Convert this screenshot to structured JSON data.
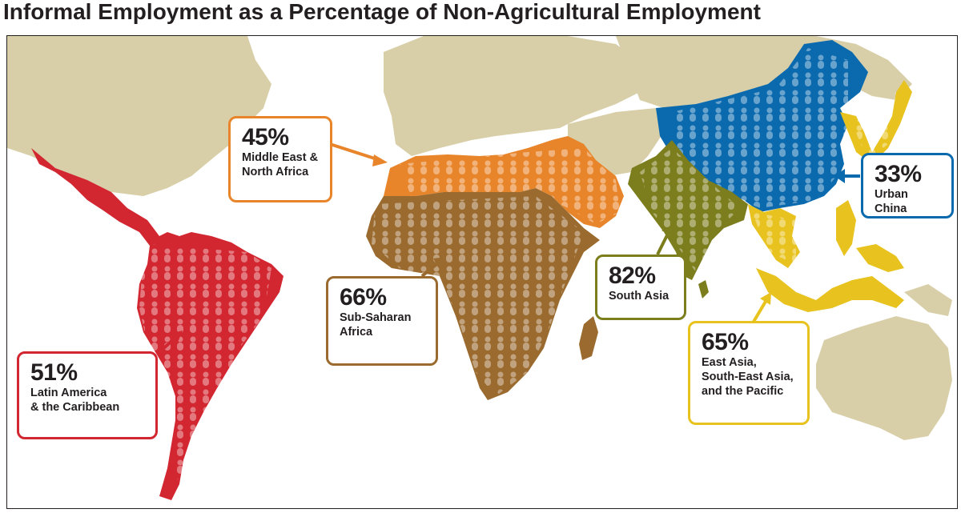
{
  "title": "Informal Employment as a Percentage of Non-Agricultural Employment",
  "colors": {
    "land": "#d8cfa8",
    "ocean": "#ffffff",
    "latin_america": "#d22630",
    "mena": "#e8852a",
    "sub_saharan_africa": "#9a6a2e",
    "south_asia": "#7c7d1c",
    "urban_china": "#0b6aae",
    "east_asia_pacific": "#e8c21e",
    "figure_dots": "rgba(255,255,255,0.35)"
  },
  "regions": [
    {
      "key": "latin_america",
      "percent": "51%",
      "name": "Latin America\n& the Caribbean",
      "value": 51
    },
    {
      "key": "mena",
      "percent": "45%",
      "name": "Middle East &\nNorth Africa",
      "value": 45
    },
    {
      "key": "sub_saharan_africa",
      "percent": "66%",
      "name": "Sub-Saharan\nAfrica",
      "value": 66
    },
    {
      "key": "south_asia",
      "percent": "82%",
      "name": "South Asia",
      "value": 82
    },
    {
      "key": "east_asia_pacific",
      "percent": "65%",
      "name": "East Asia,\nSouth-East Asia,\nand the Pacific",
      "value": 65
    },
    {
      "key": "urban_china",
      "percent": "33%",
      "name": "Urban China",
      "value": 33
    }
  ]
}
